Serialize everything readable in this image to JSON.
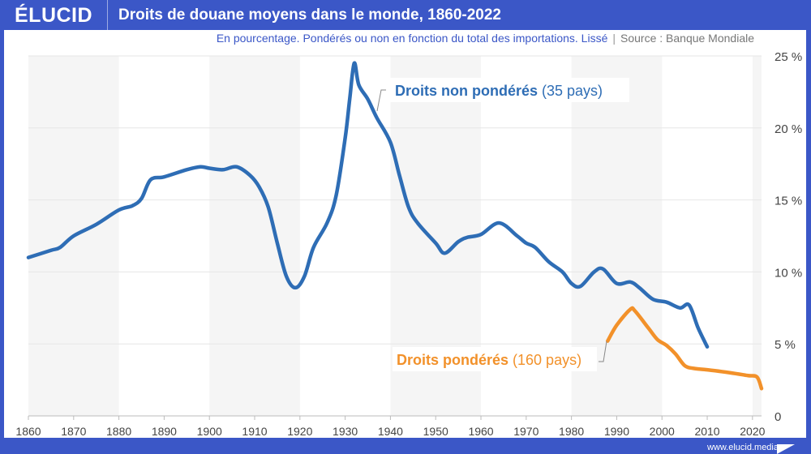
{
  "header": {
    "logo": "ÉLUCID",
    "title": "Droits de douane moyens dans le monde, 1860-2022"
  },
  "subtitle": {
    "text": "En pourcentage. Pondérés ou non en fonction du total des importations. Lissé",
    "separator": "|",
    "source": "Source : Banque Mondiale"
  },
  "footer": {
    "url": "www.elucid.media"
  },
  "colors": {
    "brand": "#3b57c7",
    "unweighted": "#2e6db5",
    "weighted": "#f2912a"
  },
  "chart_data": {
    "type": "line",
    "title": "Droits de douane moyens dans le monde, 1860-2022",
    "xlim": [
      1860,
      2022
    ],
    "ylim": [
      0,
      25
    ],
    "x_ticks": [
      1860,
      1870,
      1880,
      1890,
      1900,
      1910,
      1920,
      1930,
      1940,
      1950,
      1960,
      1970,
      1980,
      1990,
      2000,
      2010,
      2020
    ],
    "x_tick_labels": [
      "1860",
      "1870",
      "1880",
      "1890",
      "1900",
      "1910",
      "1920",
      "1930",
      "1940",
      "1950",
      "1960",
      "1970",
      "1980",
      "1990",
      "2000",
      "2010",
      "2020"
    ],
    "y_ticks": [
      0,
      5,
      10,
      15,
      20,
      25
    ],
    "y_tick_labels": [
      "0",
      "5 %",
      "10 %",
      "15 %",
      "20 %",
      "25 %"
    ],
    "grid": true,
    "series": [
      {
        "name": "Droits non pondérés",
        "name_suffix": "(35 pays)",
        "color": "#2e6db5",
        "x": [
          1860,
          1865,
          1867,
          1870,
          1875,
          1880,
          1883,
          1885,
          1887,
          1890,
          1895,
          1898,
          1900,
          1903,
          1906,
          1909,
          1911,
          1913,
          1915,
          1917,
          1919,
          1921,
          1923,
          1926,
          1928,
          1930,
          1931,
          1932,
          1933,
          1935,
          1937,
          1940,
          1942,
          1944,
          1946,
          1950,
          1952,
          1955,
          1957,
          1960,
          1964,
          1968,
          1970,
          1972,
          1975,
          1978,
          1980,
          1982,
          1985,
          1987,
          1990,
          1993,
          1995,
          1998,
          2001,
          2004,
          2006,
          2008,
          2010
        ],
        "y": [
          11.0,
          11.5,
          11.7,
          12.5,
          13.3,
          14.3,
          14.6,
          15.1,
          16.4,
          16.6,
          17.1,
          17.3,
          17.2,
          17.1,
          17.3,
          16.7,
          15.9,
          14.5,
          12.0,
          9.7,
          8.9,
          9.7,
          11.7,
          13.4,
          15.3,
          19.3,
          22.0,
          24.5,
          23.0,
          22.0,
          20.7,
          19.0,
          16.7,
          14.5,
          13.4,
          12.0,
          11.3,
          12.1,
          12.4,
          12.6,
          13.4,
          12.5,
          12.0,
          11.7,
          10.7,
          10.0,
          9.2,
          9.0,
          10.0,
          10.2,
          9.2,
          9.3,
          8.9,
          8.1,
          7.9,
          7.5,
          7.7,
          6.1,
          4.8
        ]
      },
      {
        "name": "Droits pondérés",
        "name_suffix": "(160 pays)",
        "color": "#f2912a",
        "x": [
          1988,
          1990,
          1993,
          1994,
          1997,
          1999,
          2001,
          2003,
          2005,
          2007,
          2010,
          2015,
          2019,
          2021,
          2022
        ],
        "y": [
          5.2,
          6.3,
          7.4,
          7.3,
          6.1,
          5.3,
          4.9,
          4.3,
          3.5,
          3.3,
          3.2,
          3.0,
          2.8,
          2.7,
          1.9
        ]
      }
    ]
  }
}
